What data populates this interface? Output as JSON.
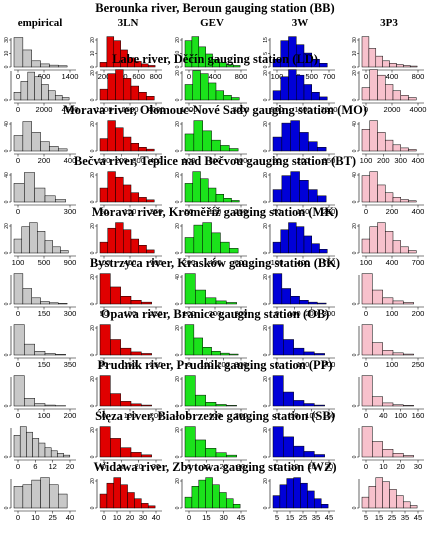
{
  "models": [
    "empirical",
    "3LN",
    "GEV",
    "3W",
    "3P3"
  ],
  "colors": {
    "empirical": "#c8c8c8",
    "3LN": "#e00000",
    "GEV": "#1be21b",
    "3W": "#0000d8",
    "3P3": "#f7c1cc"
  },
  "chart_data": [
    {
      "type": "bar",
      "station": "Berounka river, Beroun gauging station",
      "code": "(BB)",
      "x_ticks": [
        [
          "0",
          "600",
          "1400"
        ],
        [
          "200",
          "400",
          "600",
          "800"
        ],
        [
          "0",
          "400",
          "800"
        ],
        [
          "100",
          "300",
          "500",
          "700"
        ],
        [
          "0",
          "400",
          "800"
        ]
      ],
      "y_ticks": [
        [
          "0",
          "10",
          "30"
        ],
        [
          "0",
          "10",
          "20"
        ],
        [
          "0",
          "10",
          "20"
        ],
        [
          "0",
          "5",
          "15"
        ],
        [
          "0",
          "10",
          "30"
        ]
      ],
      "values": [
        [
          0.95,
          0.55,
          0.2,
          0.1,
          0.06,
          0.04
        ],
        [
          0.15,
          0.98,
          0.85,
          0.55,
          0.3,
          0.18,
          0.1,
          0.05
        ],
        [
          0.85,
          0.98,
          0.65,
          0.42,
          0.25,
          0.15,
          0.08,
          0.05
        ],
        [
          0.25,
          0.85,
          0.98,
          0.72,
          0.45,
          0.25,
          0.12
        ],
        [
          0.98,
          0.6,
          0.35,
          0.2,
          0.12,
          0.08,
          0.05,
          0.03
        ]
      ]
    },
    {
      "type": "bar",
      "station": "Labe river, Děčín gauging station",
      "code": "(LD)",
      "x_ticks": [
        [
          "0",
          "2000",
          "4500"
        ],
        [
          "1000",
          "2500",
          "4000"
        ],
        [
          "1000",
          "3000"
        ],
        [
          "500",
          "1500",
          "2500"
        ],
        [
          "0",
          "2000",
          "4000"
        ]
      ],
      "y_ticks": [
        [
          "0"
        ],
        [
          "0",
          "20"
        ],
        [
          "0",
          "20"
        ],
        [
          "0",
          "20"
        ],
        [
          "0",
          "20"
        ]
      ],
      "values": [
        [
          0.25,
          0.6,
          0.9,
          0.75,
          0.5,
          0.3,
          0.15,
          0.08
        ],
        [
          0.35,
          0.85,
          0.98,
          0.7,
          0.45,
          0.25,
          0.12
        ],
        [
          0.5,
          0.95,
          0.85,
          0.55,
          0.3,
          0.15,
          0.08
        ],
        [
          0.3,
          0.75,
          0.98,
          0.8,
          0.5,
          0.25,
          0.1
        ],
        [
          0.4,
          0.98,
          0.8,
          0.5,
          0.3,
          0.15,
          0.08
        ]
      ]
    },
    {
      "type": "bar",
      "station": "Morava river, Olomouc-Nové Sady gauging station",
      "code": "(MO)",
      "x_ticks": [
        [
          "0",
          "200",
          "400"
        ],
        [
          "100",
          "200",
          "300",
          "400"
        ],
        [
          "100",
          "300",
          "500"
        ],
        [
          "50",
          "200",
          "350"
        ],
        [
          "100",
          "200",
          "300",
          "400"
        ]
      ],
      "y_ticks": [
        [
          "0",
          "40"
        ],
        [
          "0",
          "20"
        ],
        [
          "0",
          "20"
        ],
        [
          "0",
          "20"
        ],
        [
          "0",
          "40"
        ]
      ],
      "values": [
        [
          0.5,
          0.95,
          0.6,
          0.3,
          0.15,
          0.07
        ],
        [
          0.4,
          0.98,
          0.75,
          0.45,
          0.25,
          0.12,
          0.06
        ],
        [
          0.55,
          0.98,
          0.65,
          0.35,
          0.18,
          0.08
        ],
        [
          0.45,
          0.9,
          0.98,
          0.6,
          0.3,
          0.12
        ],
        [
          0.7,
          0.98,
          0.6,
          0.35,
          0.2,
          0.1,
          0.05
        ]
      ]
    },
    {
      "type": "bar",
      "station": "Bečva river, Teplice nad Bečvou gauging station",
      "code": "(BT)",
      "x_ticks": [
        [
          "0",
          "300"
        ],
        [
          "50",
          "150",
          "250"
        ],
        [
          "50",
          "150",
          "250"
        ],
        [
          "50",
          "150",
          "250"
        ],
        [
          "0",
          "200",
          "400"
        ]
      ],
      "y_ticks": [
        [
          "0",
          "40"
        ],
        [
          "0",
          "20"
        ],
        [
          "0",
          "20"
        ],
        [
          "0",
          "20"
        ],
        [
          "0",
          "40"
        ]
      ],
      "values": [
        [
          0.6,
          0.95,
          0.45,
          0.2,
          0.08
        ],
        [
          0.45,
          0.98,
          0.8,
          0.55,
          0.3,
          0.15,
          0.07
        ],
        [
          0.6,
          0.98,
          0.75,
          0.45,
          0.25,
          0.12,
          0.05
        ],
        [
          0.4,
          0.85,
          0.98,
          0.7,
          0.4,
          0.2
        ],
        [
          0.85,
          0.98,
          0.55,
          0.3,
          0.15,
          0.08,
          0.04
        ]
      ]
    },
    {
      "type": "bar",
      "station": "Morava river, Kroměříž gauging station",
      "code": "(MK)",
      "x_ticks": [
        [
          "100",
          "500",
          "900"
        ],
        [
          "100",
          "400",
          "700"
        ],
        [
          "200",
          "400",
          "600"
        ],
        [
          "100",
          "400",
          "700"
        ],
        [
          "100",
          "400",
          "700"
        ]
      ],
      "y_ticks": [
        [
          "0",
          "20"
        ],
        [
          "0",
          "20"
        ],
        [
          "0",
          "20"
        ],
        [
          "0",
          "20"
        ],
        [
          "0",
          "20"
        ]
      ],
      "values": [
        [
          0.45,
          0.85,
          0.98,
          0.7,
          0.4,
          0.2,
          0.08
        ],
        [
          0.35,
          0.8,
          0.98,
          0.75,
          0.45,
          0.25,
          0.1
        ],
        [
          0.5,
          0.9,
          0.98,
          0.65,
          0.35,
          0.15
        ],
        [
          0.35,
          0.75,
          0.98,
          0.85,
          0.55,
          0.3,
          0.12
        ],
        [
          0.45,
          0.85,
          0.98,
          0.7,
          0.4,
          0.2,
          0.08
        ]
      ]
    },
    {
      "type": "bar",
      "station": "Bystrzyca river, Krasków gauging station",
      "code": "(BK)",
      "x_ticks": [
        [
          "0",
          "150",
          "300"
        ],
        [
          "50",
          "150",
          "250"
        ],
        [
          "100",
          "200",
          "300"
        ],
        [
          "0",
          "100",
          "200",
          "300"
        ],
        [
          "0",
          "100",
          "200"
        ]
      ],
      "y_ticks": [
        [
          "0"
        ],
        [
          "0",
          "20"
        ],
        [
          "0",
          "40"
        ],
        [
          "0",
          "20"
        ],
        [
          "0"
        ]
      ],
      "values": [
        [
          0.98,
          0.5,
          0.2,
          0.08,
          0.04,
          0.02
        ],
        [
          0.98,
          0.55,
          0.25,
          0.12,
          0.06
        ],
        [
          0.98,
          0.45,
          0.2,
          0.1,
          0.05
        ],
        [
          0.98,
          0.5,
          0.25,
          0.12,
          0.06,
          0.03
        ],
        [
          0.98,
          0.45,
          0.2,
          0.1,
          0.05
        ]
      ]
    },
    {
      "type": "bar",
      "station": "Opawa river, Branice gauging station",
      "code": "(OB)",
      "x_ticks": [
        [
          "0",
          "150",
          "350"
        ],
        [
          "50",
          "150",
          "250"
        ],
        [
          "0",
          "100",
          "200",
          "300"
        ],
        [
          "0",
          "100",
          "200"
        ],
        [
          "0",
          "100",
          "250"
        ]
      ],
      "y_ticks": [
        [
          "0"
        ],
        [
          "0",
          "20"
        ],
        [
          "0",
          "20"
        ],
        [
          "0",
          "20"
        ],
        [
          "0"
        ]
      ],
      "values": [
        [
          0.98,
          0.35,
          0.12,
          0.05,
          0.02
        ],
        [
          0.98,
          0.5,
          0.22,
          0.1,
          0.05
        ],
        [
          0.98,
          0.55,
          0.25,
          0.12,
          0.06,
          0.03
        ],
        [
          0.98,
          0.5,
          0.22,
          0.1,
          0.05
        ],
        [
          0.98,
          0.4,
          0.15,
          0.07,
          0.03
        ]
      ]
    },
    {
      "type": "bar",
      "station": "Prudnik river, Prudnik gauging station",
      "code": "(PP)",
      "x_ticks": [
        [
          "0",
          "100",
          "200"
        ],
        [
          "0",
          "100",
          "200"
        ],
        [
          "0",
          "100",
          "200"
        ],
        [
          "0",
          "50",
          "100",
          "150"
        ],
        [
          "0",
          "40",
          "100",
          "160"
        ]
      ],
      "y_ticks": [
        [
          "0"
        ],
        [
          "0",
          "20"
        ],
        [
          "0",
          "20"
        ],
        [
          "0",
          "20"
        ],
        [
          "0"
        ]
      ],
      "values": [
        [
          0.98,
          0.25,
          0.08,
          0.03,
          0.01
        ],
        [
          0.98,
          0.4,
          0.15,
          0.07,
          0.03
        ],
        [
          0.98,
          0.35,
          0.12,
          0.05,
          0.02
        ],
        [
          0.98,
          0.45,
          0.18,
          0.08,
          0.03
        ],
        [
          0.98,
          0.3,
          0.1,
          0.04,
          0.02
        ]
      ]
    },
    {
      "type": "bar",
      "station": "Ślęza river, Białobrzezie gauging station",
      "code": "(SB)",
      "x_ticks": [
        [
          "0",
          "6",
          "12",
          "20"
        ],
        [
          "0",
          "10",
          "20",
          "30"
        ],
        [
          "0",
          "10",
          "20",
          "30"
        ],
        [
          "0",
          "10",
          "20",
          "30"
        ],
        [
          "0",
          "10",
          "20",
          "30"
        ]
      ],
      "y_ticks": [
        [
          "0"
        ],
        [
          "0",
          "20"
        ],
        [
          "0",
          "20"
        ],
        [
          "0",
          "20"
        ],
        [
          "0"
        ]
      ],
      "values": [
        [
          0.7,
          0.98,
          0.8,
          0.6,
          0.45,
          0.3,
          0.2,
          0.12,
          0.06
        ],
        [
          0.98,
          0.6,
          0.3,
          0.15,
          0.07
        ],
        [
          0.98,
          0.55,
          0.28,
          0.14,
          0.06
        ],
        [
          0.98,
          0.65,
          0.35,
          0.18,
          0.08
        ],
        [
          0.98,
          0.5,
          0.25,
          0.12,
          0.05
        ]
      ]
    },
    {
      "type": "bar",
      "station": "Widawa river, Zbytowa gauging station",
      "code": "(WZ)",
      "x_ticks": [
        [
          "0",
          "10",
          "25",
          "40"
        ],
        [
          "0",
          "10",
          "20",
          "30",
          "40"
        ],
        [
          "0",
          "15",
          "30",
          "45"
        ],
        [
          "5",
          "15",
          "25",
          "35",
          "45"
        ],
        [
          "5",
          "15",
          "25",
          "35",
          "45"
        ]
      ],
      "y_ticks": [
        [
          "0"
        ],
        [
          "0",
          "20"
        ],
        [
          "0",
          "20"
        ],
        [
          "0",
          "20"
        ],
        [
          "0"
        ]
      ],
      "values": [
        [
          0.7,
          0.75,
          0.9,
          0.98,
          0.75,
          0.45
        ],
        [
          0.45,
          0.8,
          0.98,
          0.75,
          0.5,
          0.3,
          0.15,
          0.07
        ],
        [
          0.35,
          0.7,
          0.9,
          0.98,
          0.75,
          0.5,
          0.3,
          0.12
        ],
        [
          0.4,
          0.75,
          0.95,
          0.98,
          0.8,
          0.55,
          0.3,
          0.12
        ],
        [
          0.35,
          0.7,
          0.98,
          0.85,
          0.6,
          0.4,
          0.2,
          0.08
        ]
      ]
    }
  ]
}
